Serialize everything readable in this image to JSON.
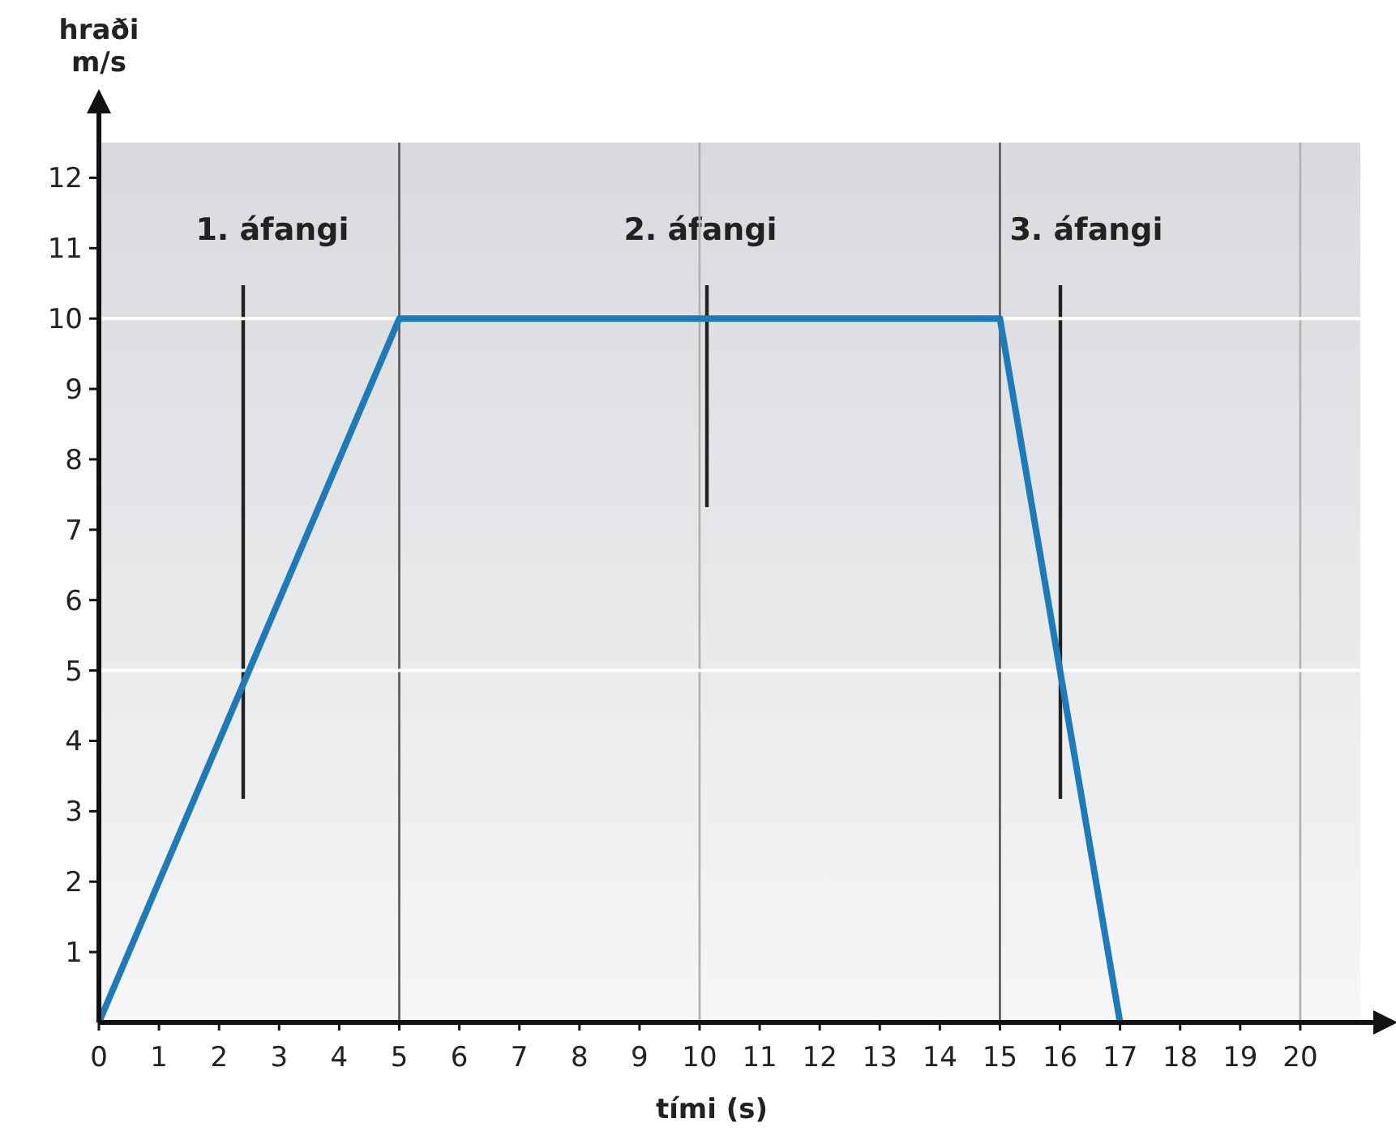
{
  "chart_data": {
    "type": "line",
    "xlabel": "tími (s)",
    "ylabel": "hraði\nm/s",
    "x": [
      0,
      5,
      15,
      17
    ],
    "series": [
      {
        "color": "#1f7ab8",
        "values": [
          0,
          10,
          10,
          0
        ]
      }
    ],
    "xlim": [
      0,
      21
    ],
    "ylim": [
      0,
      12.5
    ],
    "xticks": [
      0,
      1,
      2,
      3,
      4,
      5,
      6,
      7,
      8,
      9,
      10,
      11,
      12,
      13,
      14,
      15,
      16,
      17,
      18,
      19,
      20
    ],
    "yticks": [
      1,
      2,
      3,
      4,
      5,
      6,
      7,
      8,
      9,
      10,
      11,
      12
    ],
    "grid": false,
    "marker": "none",
    "line_style": "solid",
    "ref_lines": [
      {
        "axis": "x",
        "value": 5,
        "color": "#555555"
      },
      {
        "axis": "x",
        "value": 10,
        "color": "#b0b0b0"
      },
      {
        "axis": "x",
        "value": 15,
        "color": "#555555"
      },
      {
        "axis": "x",
        "value": 20,
        "color": "#b0b0b0"
      },
      {
        "axis": "y",
        "value": 5,
        "color": "#ffffff"
      },
      {
        "axis": "y",
        "value": 10,
        "color": "#ffffff"
      }
    ],
    "annotations": [
      "1. áfangi",
      "2. áfangi",
      "3. áfangi"
    ]
  }
}
